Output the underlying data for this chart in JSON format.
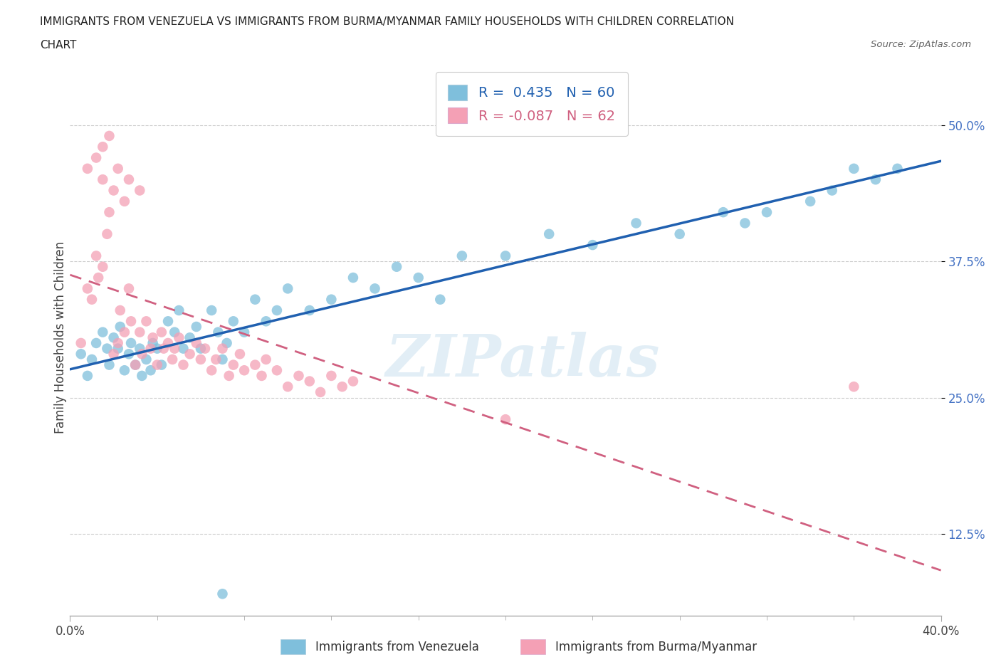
{
  "title_line1": "IMMIGRANTS FROM VENEZUELA VS IMMIGRANTS FROM BURMA/MYANMAR FAMILY HOUSEHOLDS WITH CHILDREN CORRELATION",
  "title_line2": "CHART",
  "source": "Source: ZipAtlas.com",
  "ylabel": "Family Households with Children",
  "legend_label_blue": "Immigrants from Venezuela",
  "legend_label_pink": "Immigrants from Burma/Myanmar",
  "r_blue": 0.435,
  "n_blue": 60,
  "r_pink": -0.087,
  "n_pink": 62,
  "xlim": [
    0.0,
    0.4
  ],
  "ylim": [
    0.05,
    0.56
  ],
  "color_blue": "#7fbfdc",
  "color_pink": "#f4a0b5",
  "color_blue_line": "#2060b0",
  "color_pink_line": "#d06080",
  "watermark": "ZIPatlas",
  "blue_x": [
    0.005,
    0.008,
    0.01,
    0.012,
    0.015,
    0.017,
    0.018,
    0.02,
    0.022,
    0.023,
    0.025,
    0.027,
    0.028,
    0.03,
    0.032,
    0.033,
    0.035,
    0.037,
    0.038,
    0.04,
    0.042,
    0.045,
    0.048,
    0.05,
    0.052,
    0.055,
    0.058,
    0.06,
    0.065,
    0.068,
    0.07,
    0.072,
    0.075,
    0.08,
    0.085,
    0.09,
    0.095,
    0.1,
    0.11,
    0.12,
    0.13,
    0.14,
    0.15,
    0.16,
    0.17,
    0.18,
    0.2,
    0.22,
    0.24,
    0.26,
    0.28,
    0.3,
    0.31,
    0.32,
    0.34,
    0.35,
    0.36,
    0.37,
    0.38,
    0.07
  ],
  "blue_y": [
    0.29,
    0.27,
    0.285,
    0.3,
    0.31,
    0.295,
    0.28,
    0.305,
    0.295,
    0.315,
    0.275,
    0.29,
    0.3,
    0.28,
    0.295,
    0.27,
    0.285,
    0.275,
    0.3,
    0.295,
    0.28,
    0.32,
    0.31,
    0.33,
    0.295,
    0.305,
    0.315,
    0.295,
    0.33,
    0.31,
    0.285,
    0.3,
    0.32,
    0.31,
    0.34,
    0.32,
    0.33,
    0.35,
    0.33,
    0.34,
    0.36,
    0.35,
    0.37,
    0.36,
    0.34,
    0.38,
    0.38,
    0.4,
    0.39,
    0.41,
    0.4,
    0.42,
    0.41,
    0.42,
    0.43,
    0.44,
    0.46,
    0.45,
    0.46,
    0.07
  ],
  "pink_x": [
    0.005,
    0.008,
    0.01,
    0.012,
    0.013,
    0.015,
    0.017,
    0.018,
    0.02,
    0.022,
    0.023,
    0.025,
    0.027,
    0.028,
    0.03,
    0.032,
    0.033,
    0.035,
    0.037,
    0.038,
    0.04,
    0.042,
    0.043,
    0.045,
    0.047,
    0.048,
    0.05,
    0.052,
    0.055,
    0.058,
    0.06,
    0.062,
    0.065,
    0.067,
    0.07,
    0.073,
    0.075,
    0.078,
    0.08,
    0.085,
    0.088,
    0.09,
    0.095,
    0.1,
    0.105,
    0.11,
    0.115,
    0.12,
    0.125,
    0.13,
    0.008,
    0.012,
    0.015,
    0.02,
    0.025,
    0.015,
    0.018,
    0.022,
    0.027,
    0.032,
    0.36,
    0.2
  ],
  "pink_y": [
    0.3,
    0.35,
    0.34,
    0.38,
    0.36,
    0.37,
    0.4,
    0.42,
    0.29,
    0.3,
    0.33,
    0.31,
    0.35,
    0.32,
    0.28,
    0.31,
    0.29,
    0.32,
    0.295,
    0.305,
    0.28,
    0.31,
    0.295,
    0.3,
    0.285,
    0.295,
    0.305,
    0.28,
    0.29,
    0.3,
    0.285,
    0.295,
    0.275,
    0.285,
    0.295,
    0.27,
    0.28,
    0.29,
    0.275,
    0.28,
    0.27,
    0.285,
    0.275,
    0.26,
    0.27,
    0.265,
    0.255,
    0.27,
    0.26,
    0.265,
    0.46,
    0.47,
    0.45,
    0.44,
    0.43,
    0.48,
    0.49,
    0.46,
    0.45,
    0.44,
    0.26,
    0.23
  ]
}
